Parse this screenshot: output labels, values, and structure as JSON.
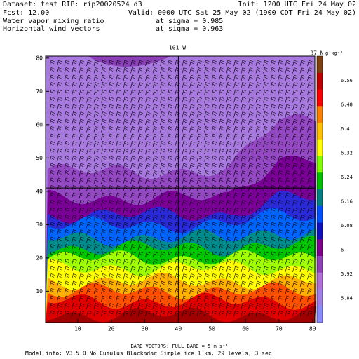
{
  "header": {
    "dataset": "Dataset: test  RIP: rip20020524 d3",
    "init": "Init: 1200 UTC Fri 24 May 02",
    "fcst": "Fcst:    12.00",
    "valid": "Valid: 0000 UTC Sat 25 May 02 (1900 CDT Fri 24 May 02)",
    "field1": "Water vapor mixing ratio",
    "level1": "at sigma = 0.985",
    "field2": "Horizontal wind vectors",
    "level2": "at sigma = 0.963"
  },
  "plot": {
    "xlim": [
      0.4,
      80.7
    ],
    "ylim": [
      0.6,
      80.6
    ],
    "xticks": [
      10,
      20,
      30,
      40,
      50,
      60,
      70,
      80
    ],
    "yticks": [
      10,
      20,
      30,
      40,
      50,
      60,
      70,
      80
    ],
    "lon_label": "101 W",
    "lat_label": "37 N"
  },
  "colorbar": {
    "unit": "g kg⁻¹",
    "labels": [
      "6.56",
      "6.48",
      "6.4",
      "6.32",
      "6.24",
      "6.16",
      "6.08",
      "6",
      "5.92",
      "5.84"
    ]
  },
  "footer": {
    "barb": "BARB VECTORS:  FULL BARB = 5 m s⁻¹",
    "model": "Model info: V3.5.0 No Cumulus Blackadar  Simple ice    1 km,  29 levels,    3 sec"
  }
}
